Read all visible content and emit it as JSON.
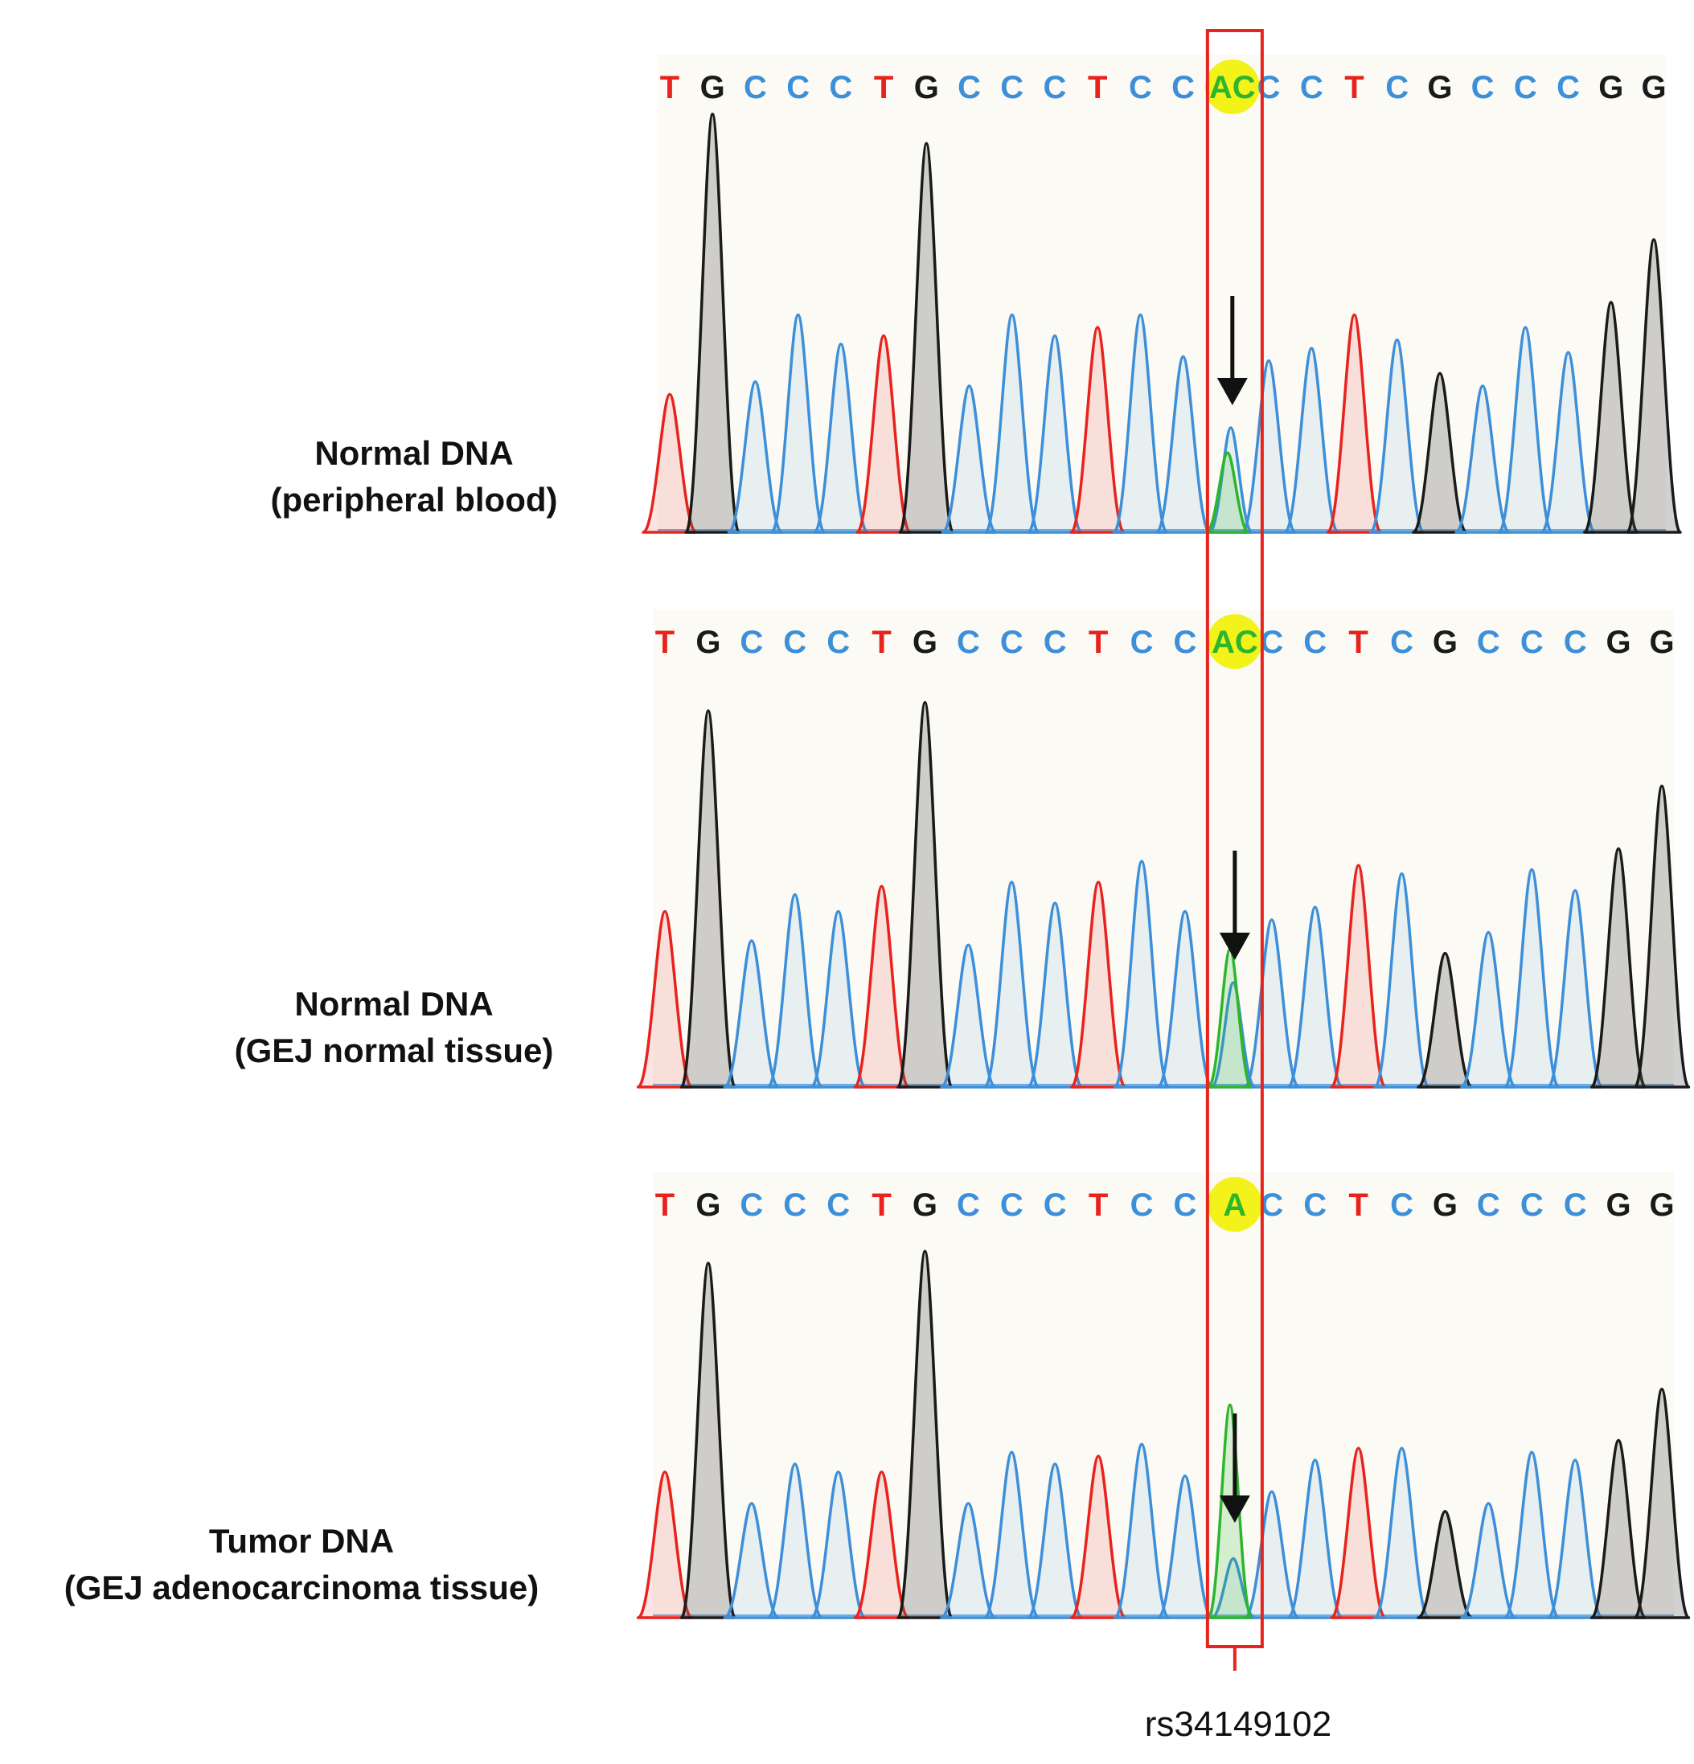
{
  "figure": {
    "snp_label": "rs34149102",
    "colors": {
      "A": "#2db52d",
      "C": "#3d8fd9",
      "G": "#1a1a1a",
      "T": "#e8231d",
      "highlight": "#f3f21a",
      "box": "#e8231d"
    },
    "panels": [
      {
        "title": "Normal DNA",
        "subtitle": "(peripheral blood)",
        "bases": [
          "T",
          "G",
          "C",
          "C",
          "C",
          "T",
          "G",
          "C",
          "C",
          "C",
          "T",
          "C",
          "C",
          "A",
          "C",
          "C",
          "T",
          "C",
          "G",
          "C",
          "C",
          "C",
          "G",
          "G"
        ],
        "snp_call": "AC",
        "snp_peaks": {
          "C": 0.25,
          "A": 0.19
        }
      },
      {
        "title": "Normal DNA",
        "subtitle": "(GEJ normal tissue)",
        "bases": [
          "T",
          "G",
          "C",
          "C",
          "C",
          "T",
          "G",
          "C",
          "C",
          "C",
          "T",
          "C",
          "C",
          "A",
          "C",
          "C",
          "T",
          "C",
          "G",
          "C",
          "C",
          "C",
          "G",
          "G"
        ],
        "snp_call": "AC",
        "snp_peaks": {
          "C": 0.25,
          "A": 0.33
        }
      },
      {
        "title": "Tumor DNA",
        "subtitle": "(GEJ adenocarcinoma tissue)",
        "bases": [
          "T",
          "G",
          "C",
          "C",
          "C",
          "T",
          "G",
          "C",
          "C",
          "C",
          "T",
          "C",
          "C",
          "A",
          "C",
          "C",
          "T",
          "C",
          "G",
          "C",
          "C",
          "C",
          "G",
          "G"
        ],
        "snp_call": "A",
        "snp_peaks": {
          "C": 0.15,
          "A": 0.54
        }
      }
    ]
  }
}
